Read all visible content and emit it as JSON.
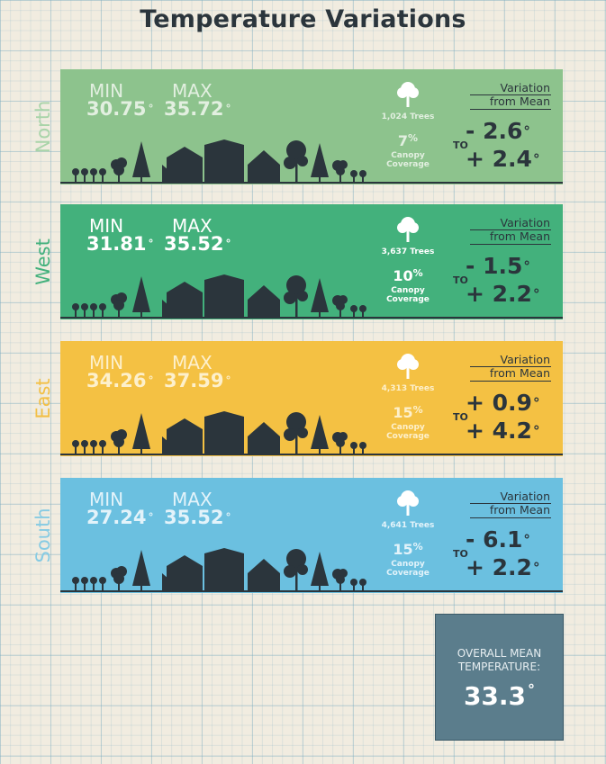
{
  "title": "Temperature Variations",
  "labels": {
    "min": "MIN",
    "max": "MAX",
    "canopy": "Canopy",
    "coverage": "Coverage",
    "variation": "Variation",
    "from_mean": "from Mean",
    "to": "TO",
    "degree": "°"
  },
  "regions": [
    {
      "name": "North",
      "min": "30.75",
      "max": "35.72",
      "trees": "1,024 Trees",
      "canopy_pct": "7",
      "var_low": "- 2.6",
      "var_high": "+ 2.4",
      "color": "#8dc38d",
      "label_color": "#a9d4a9",
      "stat_color": "#e2efe0"
    },
    {
      "name": "West",
      "min": "31.81",
      "max": "35.52",
      "trees": "3,637 Trees",
      "canopy_pct": "10",
      "var_low": "- 1.5",
      "var_high": "+ 2.2",
      "color": "#43b17c",
      "label_color": "#43b17c",
      "stat_color": "#ffffff"
    },
    {
      "name": "East",
      "min": "34.26",
      "max": "37.59",
      "trees": "4,313 Trees",
      "canopy_pct": "15",
      "var_low": "+ 0.9",
      "var_high": "+ 4.2",
      "color": "#f4c143",
      "label_color": "#f2bf45",
      "stat_color": "#fdf0cc"
    },
    {
      "name": "South",
      "min": "27.24",
      "max": "35.52",
      "trees": "4,641 Trees",
      "canopy_pct": "15",
      "var_low": "- 6.1",
      "var_high": "+ 2.2",
      "color": "#6bc0e0",
      "label_color": "#86cbe3",
      "stat_color": "#e3f3fa"
    }
  ],
  "overall": {
    "line1": "OVERALL MEAN",
    "line2": "TEMPERATURE:",
    "value": "33.3"
  }
}
